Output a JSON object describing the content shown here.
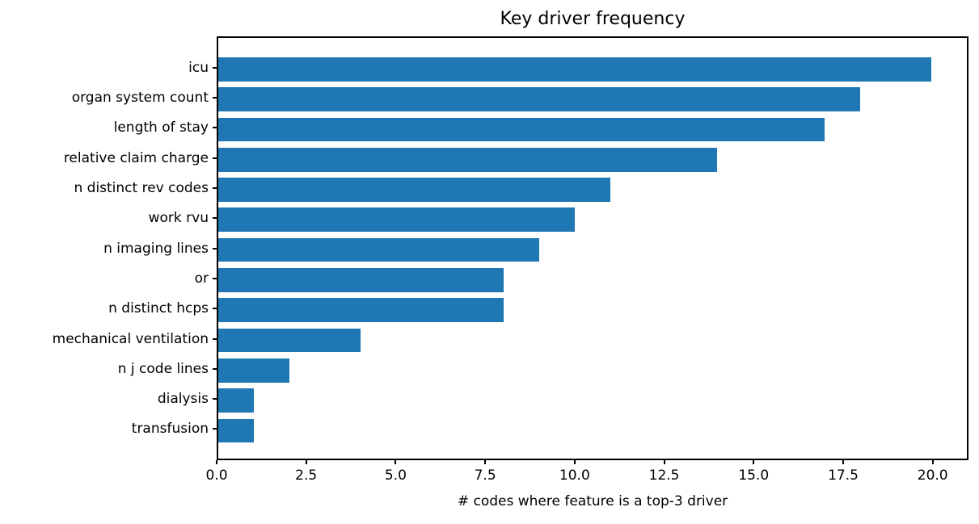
{
  "figure": {
    "background": "#ffffff"
  },
  "chart_data": {
    "type": "bar",
    "orientation": "horizontal",
    "title": "Key driver frequency",
    "xlabel": "# codes where feature is a top-3 driver",
    "ylabel": "",
    "categories": [
      "icu",
      "organ system count",
      "length of stay",
      "relative claim charge",
      "n distinct rev codes",
      "work rvu",
      "n imaging lines",
      "or",
      "n distinct hcps",
      "mechanical ventilation",
      "n j code lines",
      "dialysis",
      "transfusion"
    ],
    "values": [
      20,
      18,
      17,
      14,
      11,
      10,
      9,
      8,
      8,
      4,
      2,
      1,
      1
    ],
    "xlim": [
      0,
      21
    ],
    "xticks": [
      {
        "value": 0,
        "label": "0.0"
      },
      {
        "value": 2.5,
        "label": "2.5"
      },
      {
        "value": 5,
        "label": "5.0"
      },
      {
        "value": 7.5,
        "label": "7.5"
      },
      {
        "value": 10,
        "label": "10.0"
      },
      {
        "value": 12.5,
        "label": "12.5"
      },
      {
        "value": 15,
        "label": "15.0"
      },
      {
        "value": 17.5,
        "label": "17.5"
      },
      {
        "value": 20,
        "label": "20.0"
      }
    ],
    "bar_color": "#1f77b4",
    "axis_color": "#000000",
    "text_color": "#000000",
    "grid": false
  }
}
